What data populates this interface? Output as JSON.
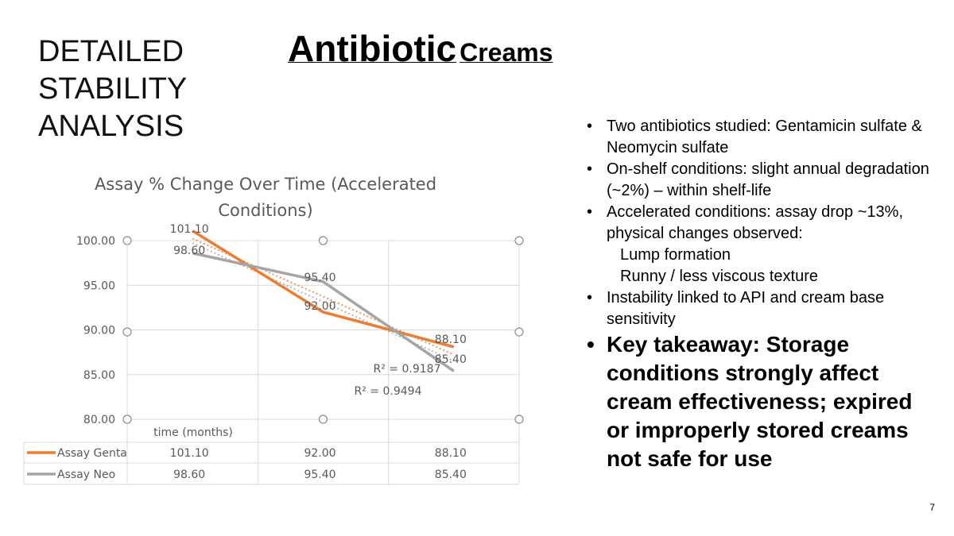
{
  "slide": {
    "side_heading": [
      "DETAILED",
      "STABILITY",
      "ANALYSIS"
    ],
    "title_main": "Antibiotic",
    "title_sub": "Creams",
    "page_number": "7"
  },
  "bullets": [
    {
      "text": "Two antibiotics studied: Gentamicin sulfate & Neomycin sulfate"
    },
    {
      "text": "On-shelf conditions: slight annual degradation (~2%) – within shelf-life"
    },
    {
      "text": "Accelerated conditions: assay drop ~13%, physical changes observed:",
      "subitems": [
        "Lump formation",
        "Runny / less viscous texture"
      ]
    },
    {
      "text": "Instability linked to API and cream base sensitivity"
    },
    {
      "text": "Key takeaway: Storage conditions strongly affect cream effectiveness; expired or improperly stored creams not safe for use",
      "key": true
    }
  ],
  "chart_data": {
    "type": "line",
    "title": "Assay % Change Over Time (Accelerated Conditions)",
    "xlabel": "time (months)",
    "ylabel": "",
    "ylim": [
      80,
      100
    ],
    "yticks": [
      "100.00",
      "95.00",
      "90.00",
      "85.00",
      "80.00"
    ],
    "ytick_values": [
      100,
      95,
      90,
      85,
      80
    ],
    "categories": [
      "",
      "",
      ""
    ],
    "series": [
      {
        "name": "Assay Genta",
        "color": "#ED7D31",
        "values": [
          101.1,
          92.0,
          88.1
        ],
        "labels": [
          "101.10",
          "92.00",
          "88.10"
        ],
        "table_values": [
          "101.10",
          "92.00",
          "88.10"
        ],
        "trendline_r2": "R² = 0.9187"
      },
      {
        "name": "Assay Neo",
        "color": "#A5A5A5",
        "values": [
          98.6,
          95.4,
          85.4
        ],
        "labels": [
          "98.60",
          "95.40",
          "85.40"
        ],
        "table_values": [
          "98.60",
          "95.40",
          "85.40"
        ],
        "trendline_r2": "R² = 0.9494"
      }
    ],
    "data_table": true,
    "grid": true
  }
}
